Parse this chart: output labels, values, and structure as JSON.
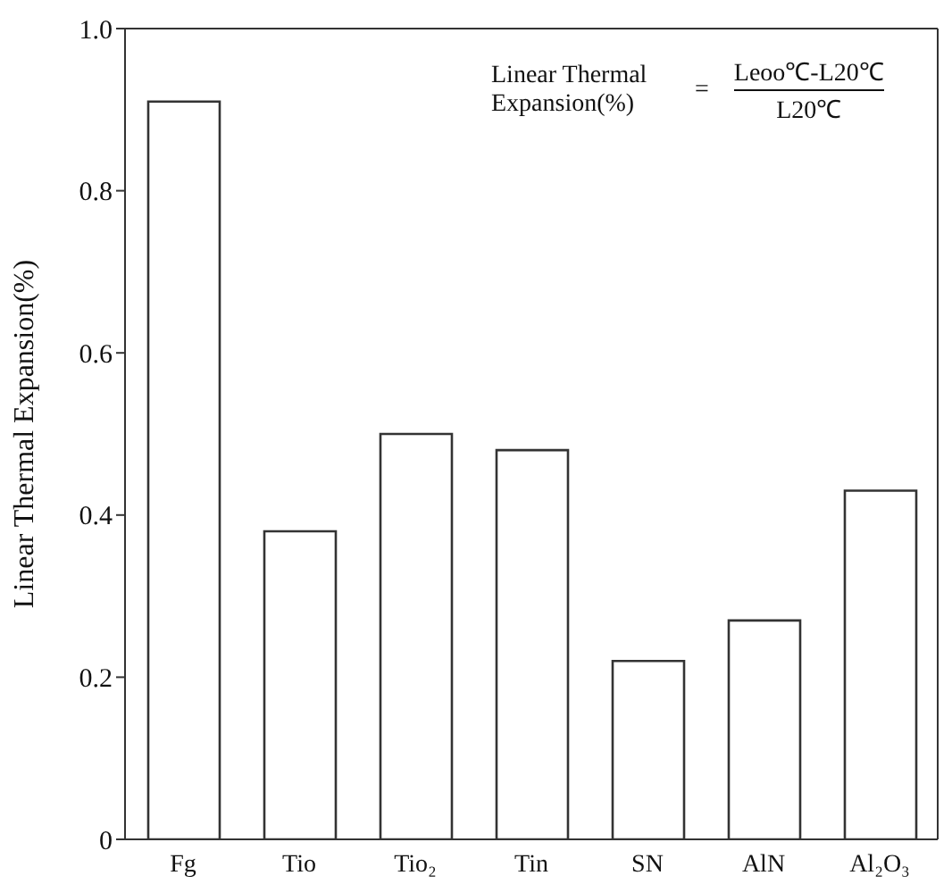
{
  "chart_data": {
    "type": "bar",
    "ylabel": "Linear Thermal Expansion(%)",
    "categories": [
      "Fg",
      "Tio",
      "Tio₂",
      "Tin",
      "SN",
      "AlN",
      "Al₂O₃"
    ],
    "values": [
      0.91,
      0.38,
      0.5,
      0.48,
      0.22,
      0.27,
      0.43
    ],
    "color": "#ffffff",
    "ylim": [
      0,
      1.0
    ],
    "yticks": [
      {
        "value": 0,
        "label": "0"
      },
      0.2,
      0.4,
      0.6,
      0.8,
      {
        "value": 1.0,
        "label": "1.0"
      }
    ],
    "grid": false,
    "legend": false,
    "annotations": [
      "Linear Thermal Expansion(%)",
      "=",
      "Leoo℃-L20℃",
      "L20℃"
    ]
  }
}
